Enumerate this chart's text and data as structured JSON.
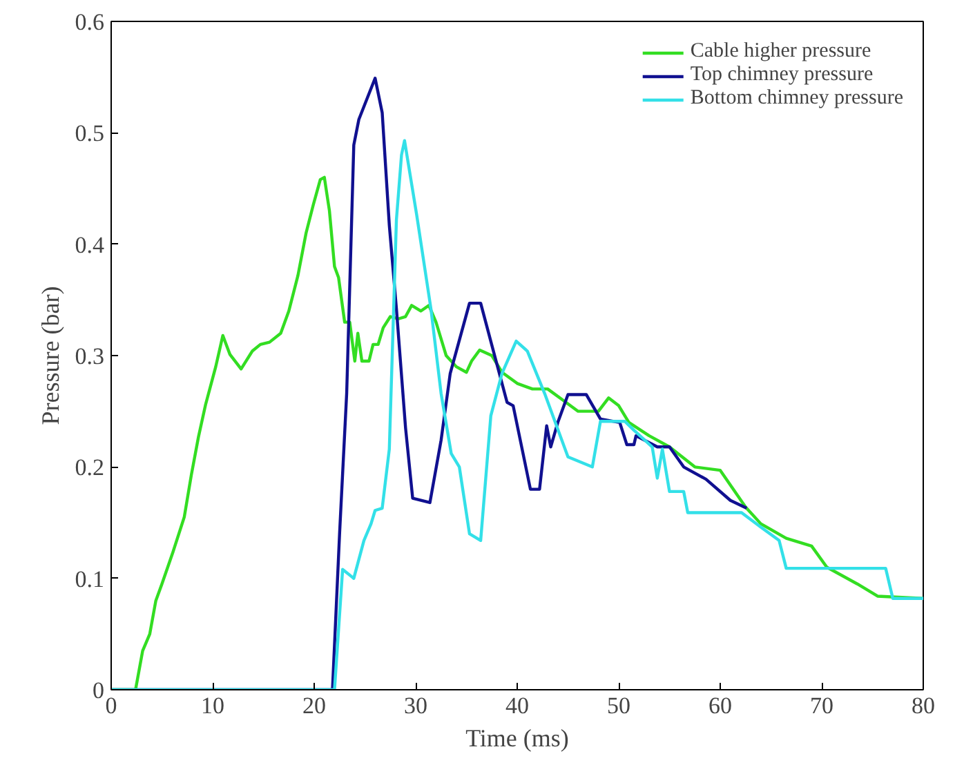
{
  "chart_data": {
    "type": "line",
    "xlabel": "Time (ms)",
    "ylabel": "Pressure (bar)",
    "xlim": [
      0,
      80
    ],
    "ylim": [
      0,
      0.6
    ],
    "xticks": [
      0,
      10,
      20,
      30,
      40,
      50,
      60,
      70,
      80
    ],
    "yticks": [
      {
        "value": 0,
        "label": "0"
      },
      0.1,
      0.2,
      0.3,
      0.4,
      0.5,
      0.6
    ],
    "grid": false,
    "legend": "top right",
    "line_style": "solid",
    "marker": "none",
    "series": [
      {
        "name": "Cable higher pressure",
        "color": "#33dd22",
        "x": [
          0,
          2.4,
          3.1,
          3.8,
          4.4,
          5,
          6.1,
          7.2,
          7.9,
          8.6,
          9.3,
          10.3,
          11,
          11.7,
          12.8,
          13.9,
          14.7,
          15.6,
          16.7,
          17.5,
          18.4,
          19.2,
          19.9,
          20.6,
          21,
          21.5,
          22,
          22.4,
          23,
          23.5,
          24,
          24.3,
          24.7,
          25.4,
          25.8,
          26.3,
          26.8,
          27.5,
          28.3,
          29,
          29.6,
          30.5,
          31.3,
          32,
          33,
          34,
          35,
          35.5,
          36.3,
          37.5,
          38.5,
          40,
          41.5,
          43,
          44.5,
          46,
          48,
          49,
          50,
          51,
          53,
          55,
          57.5,
          60,
          62.5,
          64,
          66.5,
          69,
          70.5,
          73.5,
          75.5,
          80
        ],
        "values": [
          0,
          0,
          0.035,
          0.05,
          0.08,
          0.095,
          0.124,
          0.155,
          0.193,
          0.227,
          0.256,
          0.29,
          0.318,
          0.301,
          0.288,
          0.304,
          0.31,
          0.312,
          0.32,
          0.34,
          0.372,
          0.41,
          0.435,
          0.458,
          0.46,
          0.43,
          0.38,
          0.37,
          0.33,
          0.33,
          0.295,
          0.32,
          0.295,
          0.295,
          0.31,
          0.31,
          0.325,
          0.335,
          0.333,
          0.335,
          0.345,
          0.34,
          0.345,
          0.33,
          0.3,
          0.29,
          0.285,
          0.295,
          0.305,
          0.3,
          0.285,
          0.275,
          0.27,
          0.27,
          0.26,
          0.25,
          0.25,
          0.262,
          0.255,
          0.24,
          0.228,
          0.218,
          0.2,
          0.197,
          0.164,
          0.149,
          0.136,
          0.129,
          0.11,
          0.095,
          0.084,
          0.082
        ]
      },
      {
        "name": "Top chimney pressure",
        "color": "#101090",
        "x": [
          0,
          21.8,
          22.5,
          23.2,
          23.9,
          24.4,
          26,
          26.7,
          27.4,
          28.1,
          29,
          29.7,
          31.4,
          32.5,
          33.4,
          35.3,
          36.4,
          39,
          39.6,
          41.3,
          42.2,
          42.9,
          43.3,
          44,
          45,
          46.8,
          48.2,
          50.1,
          50.8,
          51.5,
          51.7,
          53.8,
          55,
          56.4,
          58.6,
          61,
          62.6
        ],
        "values": [
          0,
          0,
          0.14,
          0.266,
          0.489,
          0.512,
          0.549,
          0.518,
          0.417,
          0.342,
          0.235,
          0.172,
          0.168,
          0.224,
          0.284,
          0.347,
          0.347,
          0.258,
          0.255,
          0.18,
          0.18,
          0.237,
          0.218,
          0.24,
          0.265,
          0.265,
          0.243,
          0.24,
          0.22,
          0.22,
          0.228,
          0.218,
          0.218,
          0.2,
          0.189,
          0.17,
          0.163
        ]
      },
      {
        "name": "Bottom chimney pressure",
        "color": "#33e0e8",
        "x": [
          0,
          22,
          22.8,
          23.9,
          24.9,
          25.6,
          26,
          26.7,
          27.4,
          28.1,
          28.6,
          28.9,
          30.1,
          31.5,
          32.5,
          33.5,
          34.3,
          35.3,
          36.4,
          37.4,
          38.5,
          39.9,
          41,
          42.7,
          45,
          47.4,
          48.2,
          50.6,
          51.5,
          53.3,
          53.8,
          54.3,
          55,
          56.4,
          56.8,
          62.1,
          64,
          65.8,
          66.5,
          76.3,
          77,
          80
        ],
        "values": [
          0,
          0,
          0.108,
          0.1,
          0.134,
          0.149,
          0.161,
          0.163,
          0.216,
          0.422,
          0.48,
          0.493,
          0.426,
          0.342,
          0.266,
          0.212,
          0.2,
          0.14,
          0.134,
          0.246,
          0.284,
          0.313,
          0.304,
          0.266,
          0.209,
          0.2,
          0.241,
          0.241,
          0.233,
          0.218,
          0.19,
          0.216,
          0.178,
          0.178,
          0.159,
          0.159,
          0.146,
          0.134,
          0.109,
          0.109,
          0.082,
          0.082
        ]
      }
    ]
  }
}
